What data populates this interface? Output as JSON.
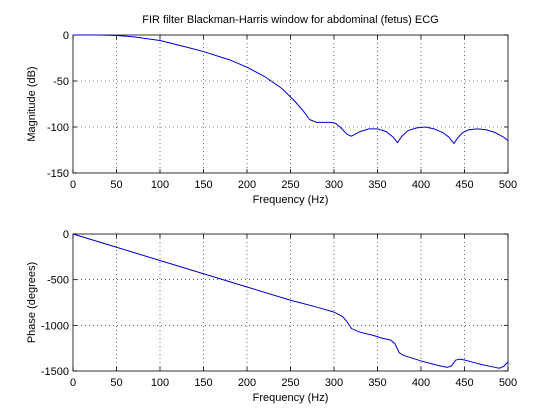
{
  "chart_data": [
    {
      "type": "line",
      "title": "FIR filter Blackman-Harris window for abdominal (fetus) ECG",
      "xlabel": "Frequency (Hz)",
      "ylabel": "Magnitude (dB)",
      "xlim": [
        0,
        500
      ],
      "ylim": [
        -150,
        0
      ],
      "xticks": [
        0,
        50,
        100,
        150,
        200,
        250,
        300,
        350,
        400,
        450,
        500
      ],
      "yticks": [
        -150,
        -100,
        -50,
        0
      ],
      "xtick_labels": [
        "0",
        "50",
        "100",
        "150",
        "200",
        "250",
        "300",
        "350",
        "400",
        "450",
        "500"
      ],
      "ytick_labels": [
        "-150",
        "-100",
        "-50",
        "0"
      ],
      "grid": true,
      "color": "#0000cc",
      "series": [
        {
          "x": [
            0,
            30,
            50,
            70,
            100,
            130,
            150,
            180,
            200,
            220,
            240,
            255,
            265,
            272,
            280,
            290,
            297,
            302,
            308,
            315,
            320,
            330,
            340,
            350,
            360,
            368,
            373,
            378,
            385,
            395,
            405,
            415,
            425,
            432,
            438,
            442,
            448,
            455,
            465,
            475,
            485,
            495,
            500
          ],
          "y": [
            0,
            0,
            -0.5,
            -2,
            -6,
            -13,
            -18,
            -27,
            -35,
            -45,
            -58,
            -72,
            -83,
            -92,
            -95,
            -95,
            -95,
            -96,
            -101,
            -108,
            -110,
            -105,
            -102,
            -102,
            -105,
            -111,
            -117,
            -110,
            -104,
            -101,
            -100,
            -102,
            -106,
            -111,
            -118,
            -112,
            -106,
            -103,
            -102,
            -103,
            -106,
            -111,
            -115
          ]
        }
      ]
    },
    {
      "type": "line",
      "title": "",
      "xlabel": "Frequency (Hz)",
      "ylabel": "Phase (degrees)",
      "xlim": [
        0,
        500
      ],
      "ylim": [
        -1500,
        0
      ],
      "xticks": [
        0,
        50,
        100,
        150,
        200,
        250,
        300,
        350,
        400,
        450,
        500
      ],
      "yticks": [
        -1500,
        -1000,
        -500,
        0
      ],
      "xtick_labels": [
        "0",
        "50",
        "100",
        "150",
        "200",
        "250",
        "300",
        "350",
        "400",
        "450",
        "500"
      ],
      "ytick_labels": [
        "-1500",
        "-1000",
        "-500",
        "0"
      ],
      "grid": true,
      "color": "#0000cc",
      "series": [
        {
          "x": [
            0,
            50,
            100,
            150,
            200,
            250,
            260,
            280,
            300,
            310,
            315,
            320,
            330,
            345,
            355,
            365,
            370,
            375,
            380,
            390,
            400,
            410,
            420,
            430,
            435,
            440,
            445,
            450,
            460,
            470,
            480,
            490,
            495,
            500
          ],
          "y": [
            0,
            -145,
            -290,
            -435,
            -580,
            -725,
            -750,
            -800,
            -855,
            -905,
            -960,
            -1035,
            -1075,
            -1110,
            -1140,
            -1160,
            -1200,
            -1300,
            -1330,
            -1360,
            -1390,
            -1415,
            -1440,
            -1460,
            -1445,
            -1380,
            -1370,
            -1380,
            -1405,
            -1430,
            -1450,
            -1470,
            -1450,
            -1400
          ]
        }
      ]
    }
  ]
}
